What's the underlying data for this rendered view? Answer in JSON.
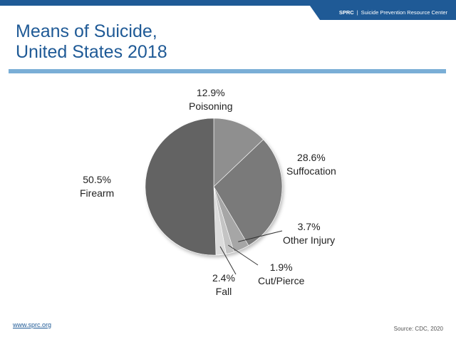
{
  "header": {
    "brand": "SPRC",
    "separator": "|",
    "org": "Suicide Prevention Resource Center"
  },
  "title": {
    "line1": "Means of Suicide,",
    "line2": "United States 2018"
  },
  "chart_data": {
    "type": "pie",
    "title": "Means of Suicide, United States 2018",
    "slices": [
      {
        "label": "Poisoning",
        "value": 12.9,
        "display": "12.9%",
        "color": "#8f8f8f"
      },
      {
        "label": "Suffocation",
        "value": 28.6,
        "display": "28.6%",
        "color": "#7a7a7a"
      },
      {
        "label": "Other Injury",
        "value": 3.7,
        "display": "3.7%",
        "color": "#a6a6a6"
      },
      {
        "label": "Cut/Pierce",
        "value": 1.9,
        "display": "1.9%",
        "color": "#c4c4c4"
      },
      {
        "label": "Fall",
        "value": 2.4,
        "display": "2.4%",
        "color": "#dcdcdc"
      },
      {
        "label": "Firearm",
        "value": 50.5,
        "display": "50.5%",
        "color": "#636363"
      }
    ],
    "start_angle_deg": 0,
    "direction": "clockwise"
  },
  "footer": {
    "link": "www.sprc.org",
    "source": "Source: CDC, 2020"
  }
}
